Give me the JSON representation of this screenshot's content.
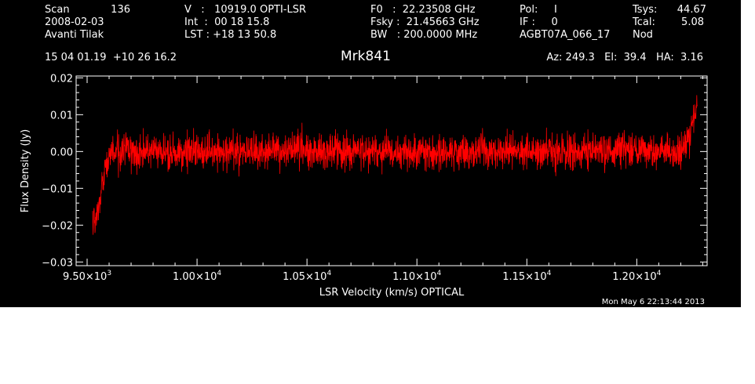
{
  "header": {
    "scan_label": "Scan",
    "scan_value": "136",
    "date": "2008-02-03",
    "observer": "Avanti Tilak",
    "ra_dec": "15 04 01.19  +10 26 16.2",
    "velocity": "V   :   10919.0 OPTI-LSR",
    "int_time": "Int  :  00 18 15.8",
    "lst": "LST : +18 13 50.8",
    "f0": "F0   :  22.23508 GHz",
    "fsky": "Fsky :  21.45663 GHz",
    "bw": "BW   : 200.0000 MHz",
    "pol": "Pol:     I",
    "if": "IF :     0",
    "project": "AGBT07A_066_17",
    "tsys_label": "Tsys:",
    "tsys_value": "44.67",
    "tcal_label": "Tcal:",
    "tcal_value": "5.08",
    "mode": "Nod",
    "source": "Mrk841",
    "pointing": "Az: 249.3   El:  39.4   HA:  3.16",
    "timestamp": "Mon May  6 22:13:44 2013"
  },
  "chart_data": {
    "type": "line",
    "title": "Mrk841",
    "xlabel": "LSR Velocity (km/s) OPTICAL",
    "ylabel": "Flux Density (Jy)",
    "xlim": [
      9450,
      12320
    ],
    "ylim": [
      -0.031,
      0.0205
    ],
    "x_ticks": [
      {
        "value": 9500,
        "mant": "9.50",
        "exp": "3"
      },
      {
        "value": 10000,
        "mant": "1.00",
        "exp": "4"
      },
      {
        "value": 10500,
        "mant": "1.05",
        "exp": "4"
      },
      {
        "value": 11000,
        "mant": "1.10",
        "exp": "4"
      },
      {
        "value": 11500,
        "mant": "1.15",
        "exp": "4"
      },
      {
        "value": 12000,
        "mant": "1.20",
        "exp": "4"
      }
    ],
    "x_tick_sep": "×10",
    "y_ticks": [
      {
        "value": 0.02,
        "label": "0.02"
      },
      {
        "value": 0.01,
        "label": "0.01"
      },
      {
        "value": 0.0,
        "label": "0.00"
      },
      {
        "value": -0.01,
        "label": "−0.01"
      },
      {
        "value": -0.02,
        "label": "−0.02"
      },
      {
        "value": -0.03,
        "label": "−0.03"
      }
    ],
    "series": [
      {
        "color": "#ff0000",
        "x_start": 9525,
        "x_end": 12275,
        "noise_rms": 0.004,
        "features": [
          {
            "x": 9525,
            "y": -0.017
          },
          {
            "x": 9545,
            "y": -0.018
          },
          {
            "x": 9565,
            "y": -0.011
          },
          {
            "x": 9590,
            "y": -0.003
          },
          {
            "x": 9620,
            "y": 0.0
          },
          {
            "x": 12200,
            "y": 0.0
          },
          {
            "x": 12240,
            "y": 0.004
          },
          {
            "x": 12262,
            "y": 0.01
          },
          {
            "x": 12275,
            "y": 0.012
          }
        ]
      }
    ]
  }
}
